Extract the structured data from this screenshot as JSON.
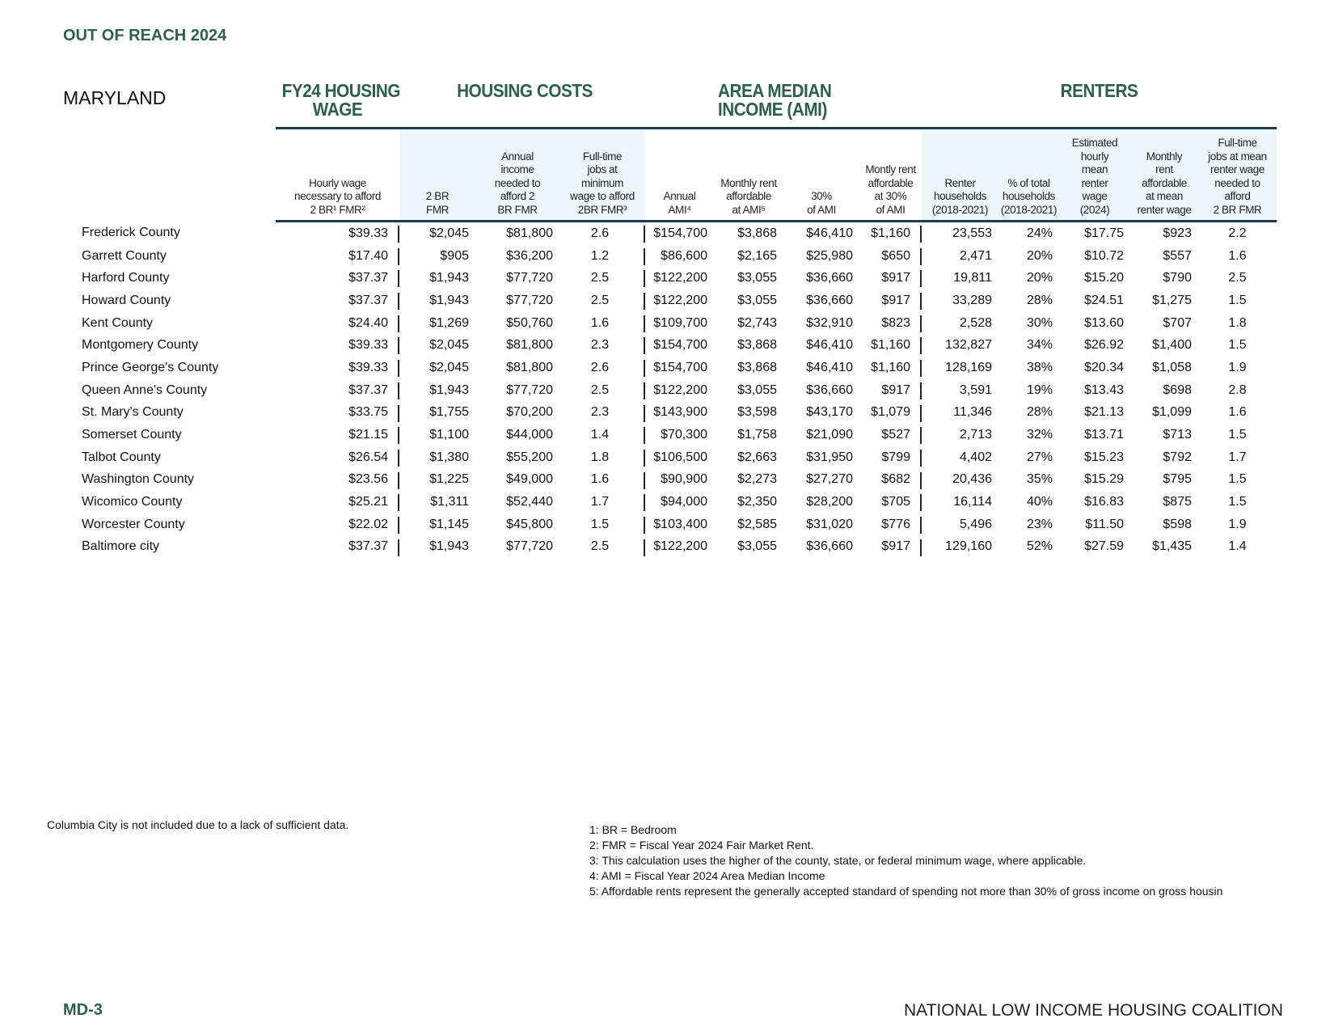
{
  "header": {
    "title": "OUT OF REACH 2024",
    "state": "MARYLAND"
  },
  "groups": [
    {
      "lines": [
        "FY24  HOUSING",
        "WAGE"
      ]
    },
    {
      "lines": [
        "HOUSING COSTS"
      ]
    },
    {
      "lines": [
        "AREA MEDIAN",
        "INCOME (AMI)"
      ]
    },
    {
      "lines": [
        "RENTERS"
      ]
    }
  ],
  "table": {
    "columns": [
      [
        "Hourly wage",
        "necessary to afford",
        "2 BR¹ FMR²"
      ],
      [
        "2 BR",
        "FMR"
      ],
      [
        "Annual",
        "income",
        "needed to",
        "afford 2",
        "BR FMR"
      ],
      [
        "Full-time",
        "jobs at",
        "minimum",
        "wage to afford",
        "2BR FMR³"
      ],
      [
        "Annual",
        "AMI⁴"
      ],
      [
        "Monthly rent",
        "affordable",
        "at AMI⁵"
      ],
      [
        "30%",
        "of AMI"
      ],
      [
        "Montly rent",
        "affordable",
        "at 30%",
        "of AMI"
      ],
      [
        "Renter",
        "households",
        "(2018-2021)"
      ],
      [
        "% of total",
        "households",
        "(2018-2021)"
      ],
      [
        "Estimated",
        "hourly",
        "mean",
        "renter",
        "wage",
        "(2024)"
      ],
      [
        "Monthly",
        "rent",
        "affordable",
        "at mean",
        "renter wage"
      ],
      [
        "Full-time",
        "jobs at mean",
        "renter wage",
        "needed to",
        "afford",
        "2 BR FMR"
      ]
    ],
    "rows": [
      [
        "Frederick County",
        "$39.33",
        "$2,045",
        "$81,800",
        "2.6",
        "$154,700",
        "$3,868",
        "$46,410",
        "$1,160",
        "23,553",
        "24%",
        "$17.75",
        "$923",
        "2.2"
      ],
      [
        "Garrett County",
        "$17.40",
        "$905",
        "$36,200",
        "1.2",
        "$86,600",
        "$2,165",
        "$25,980",
        "$650",
        "2,471",
        "20%",
        "$10.72",
        "$557",
        "1.6"
      ],
      [
        "Harford County",
        "$37.37",
        "$1,943",
        "$77,720",
        "2.5",
        "$122,200",
        "$3,055",
        "$36,660",
        "$917",
        "19,811",
        "20%",
        "$15.20",
        "$790",
        "2.5"
      ],
      [
        "Howard County",
        "$37.37",
        "$1,943",
        "$77,720",
        "2.5",
        "$122,200",
        "$3,055",
        "$36,660",
        "$917",
        "33,289",
        "28%",
        "$24.51",
        "$1,275",
        "1.5"
      ],
      [
        "Kent County",
        "$24.40",
        "$1,269",
        "$50,760",
        "1.6",
        "$109,700",
        "$2,743",
        "$32,910",
        "$823",
        "2,528",
        "30%",
        "$13.60",
        "$707",
        "1.8"
      ],
      [
        "Montgomery County",
        "$39.33",
        "$2,045",
        "$81,800",
        "2.3",
        "$154,700",
        "$3,868",
        "$46,410",
        "$1,160",
        "132,827",
        "34%",
        "$26.92",
        "$1,400",
        "1.5"
      ],
      [
        "Prince George's County",
        "$39.33",
        "$2,045",
        "$81,800",
        "2.6",
        "$154,700",
        "$3,868",
        "$46,410",
        "$1,160",
        "128,169",
        "38%",
        "$20.34",
        "$1,058",
        "1.9"
      ],
      [
        "Queen Anne's County",
        "$37.37",
        "$1,943",
        "$77,720",
        "2.5",
        "$122,200",
        "$3,055",
        "$36,660",
        "$917",
        "3,591",
        "19%",
        "$13.43",
        "$698",
        "2.8"
      ],
      [
        "St. Mary's County",
        "$33.75",
        "$1,755",
        "$70,200",
        "2.3",
        "$143,900",
        "$3,598",
        "$43,170",
        "$1,079",
        "11,346",
        "28%",
        "$21.13",
        "$1,099",
        "1.6"
      ],
      [
        "Somerset County",
        "$21.15",
        "$1,100",
        "$44,000",
        "1.4",
        "$70,300",
        "$1,758",
        "$21,090",
        "$527",
        "2,713",
        "32%",
        "$13.71",
        "$713",
        "1.5"
      ],
      [
        "Talbot County",
        "$26.54",
        "$1,380",
        "$55,200",
        "1.8",
        "$106,500",
        "$2,663",
        "$31,950",
        "$799",
        "4,402",
        "27%",
        "$15.23",
        "$792",
        "1.7"
      ],
      [
        "Washington County",
        "$23.56",
        "$1,225",
        "$49,000",
        "1.6",
        "$90,900",
        "$2,273",
        "$27,270",
        "$682",
        "20,436",
        "35%",
        "$15.29",
        "$795",
        "1.5"
      ],
      [
        "Wicomico County",
        "$25.21",
        "$1,311",
        "$52,440",
        "1.7",
        "$94,000",
        "$2,350",
        "$28,200",
        "$705",
        "16,114",
        "40%",
        "$16.83",
        "$875",
        "1.5"
      ],
      [
        "Worcester County",
        "$22.02",
        "$1,145",
        "$45,800",
        "1.5",
        "$103,400",
        "$2,585",
        "$31,020",
        "$776",
        "5,496",
        "23%",
        "$11.50",
        "$598",
        "1.9"
      ],
      [
        "Baltimore city",
        "$37.37",
        "$1,943",
        "$77,720",
        "2.5",
        "$122,200",
        "$3,055",
        "$36,660",
        "$917",
        "129,160",
        "52%",
        "$27.59",
        "$1,435",
        "1.4"
      ]
    ]
  },
  "note": "Columbia City is not included due to a lack of sufficient data.",
  "footnotes": [
    "1: BR = Bedroom",
    "2: FMR = Fiscal Year 2024 Fair Market Rent.",
    "3: This calculation uses the higher of the county, state, or federal minimum wage, where applicable.",
    "4: AMI = Fiscal Year 2024 Area Median Income",
    "5: Affordable rents represent the generally accepted standard of spending not more than 30% of gross income on gross housin"
  ],
  "footer": {
    "page": "MD-3",
    "org": "NATIONAL LOW INCOME HOUSING COALITION"
  }
}
